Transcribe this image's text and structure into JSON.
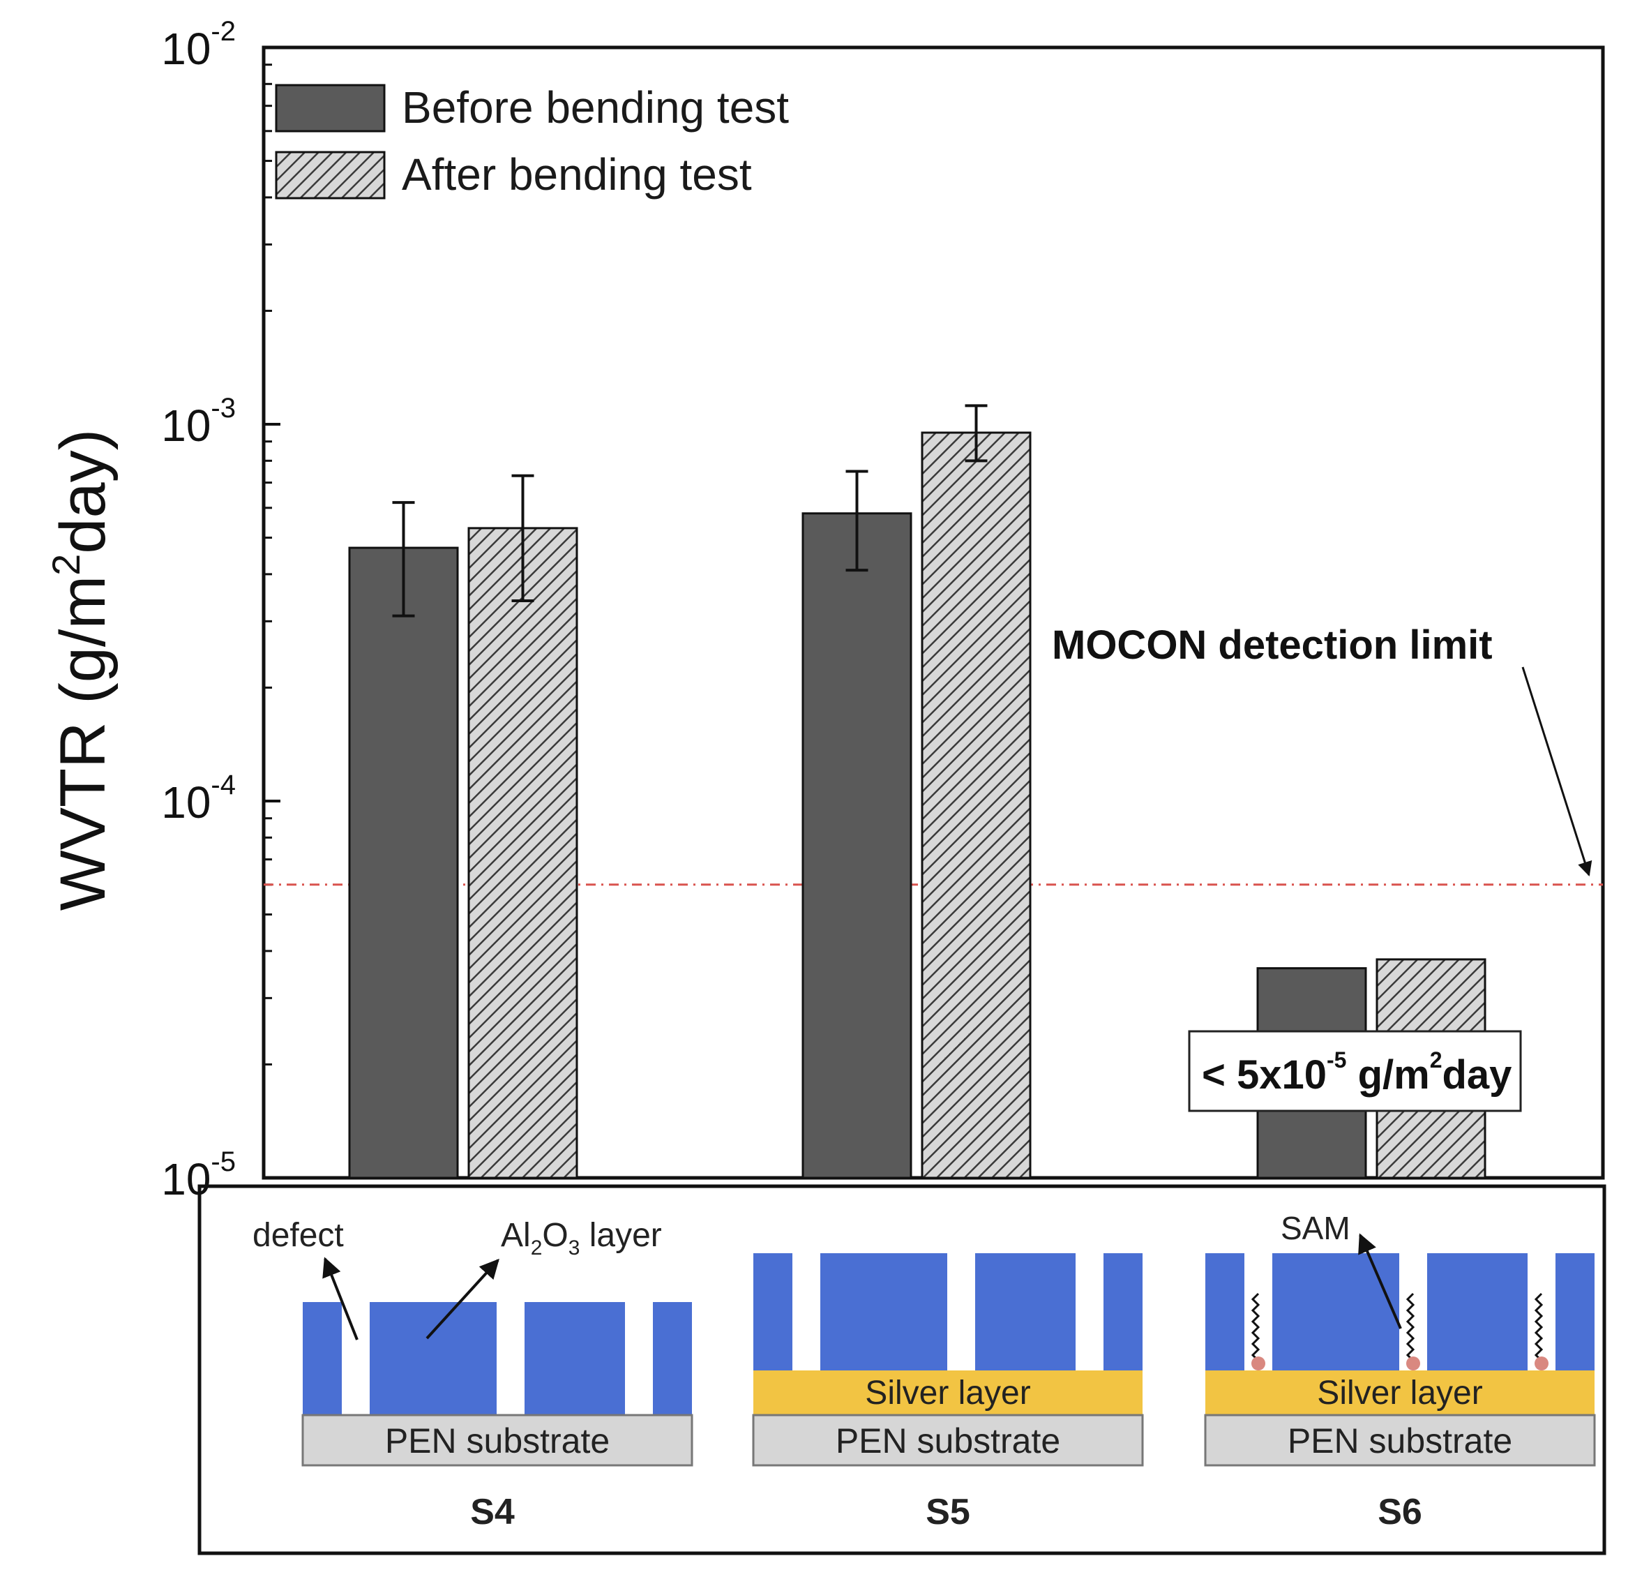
{
  "chart_data": {
    "type": "bar",
    "ylabel_main": "WVTR (g/m",
    "ylabel_sup": "2",
    "ylabel_tail": "day)",
    "yscale": "log",
    "ylim": [
      1e-05,
      0.01
    ],
    "yticks": [
      {
        "base": "10",
        "exp": "-5",
        "value": 1e-05
      },
      {
        "base": "10",
        "exp": "-4",
        "value": 0.0001
      },
      {
        "base": "10",
        "exp": "-3",
        "value": 0.001
      },
      {
        "base": "10",
        "exp": "-2",
        "value": 0.01
      }
    ],
    "categories": [
      "S4",
      "S5",
      "S6"
    ],
    "series": [
      {
        "name": "Before bending test",
        "style": "solid",
        "values": [
          0.00047,
          0.00058,
          3.6e-05
        ],
        "err_low": [
          0.00031,
          0.00041,
          null
        ],
        "err_high": [
          0.00062,
          0.00075,
          null
        ]
      },
      {
        "name": "After bending test",
        "style": "hatched",
        "values": [
          0.00053,
          0.00095,
          3.8e-05
        ],
        "err_low": [
          0.00034,
          0.0008,
          null
        ],
        "err_high": [
          0.00073,
          0.00112,
          null
        ]
      }
    ],
    "detection_limit": {
      "value": 6e-05,
      "label": "MOCON detection limit",
      "color": "#d9534f"
    },
    "annotation_box": {
      "prefix": "< 5x10",
      "exp1": "-5",
      "mid": " g/m",
      "exp2": "2",
      "suffix": "day"
    },
    "legend_position": "top-left"
  },
  "diagram": {
    "panels": [
      {
        "label": "S4",
        "substrate": "PEN substrate",
        "annot_defect": "defect",
        "annot_layer_a": "Al",
        "annot_layer_sub1": "2",
        "annot_layer_o": "O",
        "annot_layer_sub2": "3",
        "annot_layer_tail": " layer"
      },
      {
        "label": "S5",
        "substrate": "PEN substrate",
        "silver": "Silver layer"
      },
      {
        "label": "S6",
        "substrate": "PEN substrate",
        "silver": "Silver layer",
        "annot_sam": "SAM"
      }
    ]
  },
  "colors": {
    "bar_fill": "#5a5a5a",
    "hatch_bg": "#d8d8d8",
    "hatch_line": "#3a3a3a",
    "blue_layer": "#4a6fd3",
    "silver_layer": "#f2c443",
    "substrate": "#d6d6d6",
    "sam_dot": "#d98880"
  }
}
